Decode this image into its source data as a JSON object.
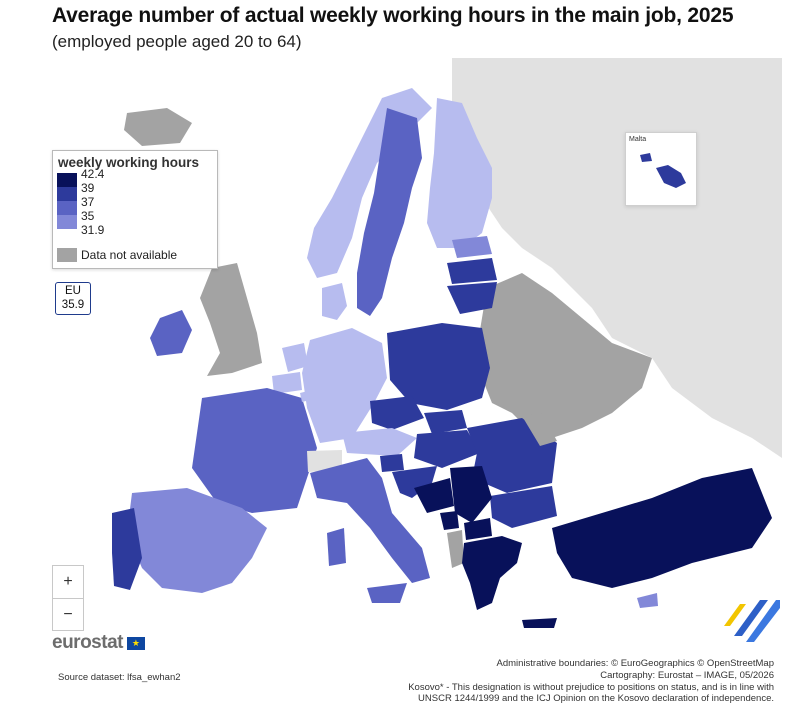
{
  "title": "Average number of actual weekly working hours in the main job, 2025",
  "subtitle": "(employed people aged 20 to 64)",
  "legend": {
    "title": "weekly working hours",
    "breaks": [
      "42.4",
      "39",
      "37",
      "35",
      "31.9"
    ],
    "colors": [
      "#08115a",
      "#2d3a9c",
      "#5a63c3",
      "#8288d8",
      "#b7bcef"
    ],
    "na_label": "Data not available",
    "na_color": "#a3a3a3"
  },
  "eu": {
    "label": "EU",
    "value": "35.9"
  },
  "zoom": {
    "in": "+",
    "out": "−"
  },
  "inset": {
    "label": "Malta"
  },
  "logo": {
    "text": "eurostat",
    "flag_icon": "★"
  },
  "source": "Source dataset: lfsa_ewhan2",
  "credits": [
    "Administrative boundaries: © EuroGeographics © OpenStreetMap",
    "Cartography: Eurostat – IMAGE, 05/2026",
    "Kosovo* - This designation is without prejudice to positions on status, and is in line with",
    "UNSCR 1244/1999 and the ICJ Opinion on the Kosovo declaration of independence."
  ],
  "colors": {
    "sea": "#ffffff",
    "non_eu": "#e1e1e1",
    "na": "#a3a3a3",
    "class1": "#08115a",
    "class2": "#2d3a9c",
    "class3": "#5a63c3",
    "class4": "#8288d8",
    "class5": "#b7bcef"
  }
}
